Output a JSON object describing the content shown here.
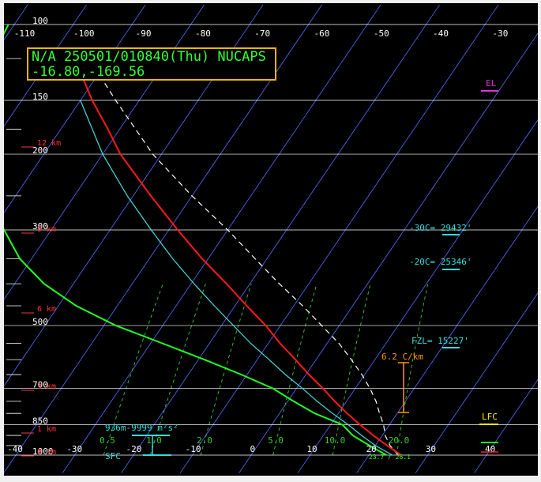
{
  "info_box": {
    "line1": "N/A 250501/010840(Thu) NUCAPS",
    "line2": "-16.80,-169.56"
  },
  "colors": {
    "background": "#000000",
    "isobar": "#ffffff",
    "isotherm": "#5a6cff",
    "mixing_ratio": "#33cc33",
    "temperature": "#ff1a1a",
    "dewpoint": "#22ff22",
    "wetbulb": "#44dddd",
    "parcel": "#ffffff",
    "height_label": "#ff3333",
    "lapse": "#ff9900",
    "level_label": "#33dddd",
    "el": "#dd33dd",
    "lfc": "#ffee00"
  },
  "chart_data": {
    "type": "line",
    "title": "",
    "xlabel": "",
    "ylabel": "",
    "skew": "skew-T log-P",
    "pressure_range": [
      1000,
      100
    ],
    "top_temperature_labels": [
      "-110",
      "-100",
      "-90",
      "-80",
      "-70",
      "-60",
      "-50",
      "-40",
      "-30"
    ],
    "bottom_temperature_labels": [
      "-40",
      "-30",
      "-20",
      "-10",
      "0",
      "10",
      "20",
      "30",
      "40"
    ],
    "pressure_labels": [
      "100",
      "150",
      "200",
      "300",
      "500",
      "700",
      "850",
      "1000"
    ],
    "height_labels": [
      "12 km",
      "9 km",
      "6 km",
      "3 km",
      "1 km",
      "0.7m"
    ],
    "mixing_ratio_labels": [
      "0.5",
      "1.0",
      "2.0",
      "5.0",
      "10.0",
      "20.0"
    ],
    "series": [
      {
        "key": "temperature",
        "pressure": [
          1000,
          950,
          900,
          850,
          800,
          750,
          700,
          650,
          600,
          550,
          500,
          450,
          400,
          350,
          300,
          250,
          200,
          175,
          150,
          130
        ],
        "temp": [
          25.5,
          22,
          18.5,
          15,
          11.5,
          8,
          4.5,
          0.5,
          -3.5,
          -8,
          -12.5,
          -18,
          -24,
          -31,
          -38.5,
          -47,
          -57,
          -62,
          -68,
          -73
        ]
      },
      {
        "key": "dewpoint",
        "pressure": [
          1000,
          950,
          900,
          850,
          800,
          750,
          700,
          650,
          600,
          550,
          500,
          450,
          400,
          350,
          300,
          250,
          200,
          150,
          120,
          100
        ],
        "temp": [
          23,
          19,
          15,
          12,
          6,
          1,
          -4,
          -11,
          -19,
          -28,
          -38,
          -47,
          -55,
          -62,
          -68,
          -75,
          -82,
          -88,
          -90,
          -91
        ]
      },
      {
        "key": "wetbulb",
        "pressure": [
          1000,
          950,
          900,
          850,
          800,
          750,
          700,
          650,
          600,
          550,
          500,
          450,
          400,
          350,
          300,
          250,
          200,
          150
        ],
        "temp": [
          24,
          20,
          16.5,
          13,
          9,
          5,
          1,
          -3.5,
          -8,
          -13,
          -18,
          -23.5,
          -29.5,
          -36,
          -43,
          -51,
          -60,
          -70
        ]
      },
      {
        "key": "parcel",
        "pressure": [
          1000,
          950,
          900,
          850,
          800,
          750,
          700,
          650,
          600,
          550,
          500,
          450,
          400,
          350,
          300,
          250,
          200,
          150,
          130
        ],
        "temp": [
          25,
          22.5,
          20.5,
          19,
          17,
          15,
          12.5,
          9.5,
          6,
          2,
          -3,
          -8.5,
          -15,
          -22,
          -30,
          -40,
          -51.5,
          -64,
          -70
        ]
      }
    ],
    "annotations": {
      "sfc_values": "23.7 / 26.1",
      "el": "EL",
      "lfc": "LFC",
      "sfc": "SFC",
      "helicity": "936m-9999 m²s²",
      "lapse_rate": "6.2 C/km",
      "fzl": "FZL= 15227'",
      "minus20": "-20C= 25346'",
      "minus30": "-30C= 29432'"
    }
  }
}
